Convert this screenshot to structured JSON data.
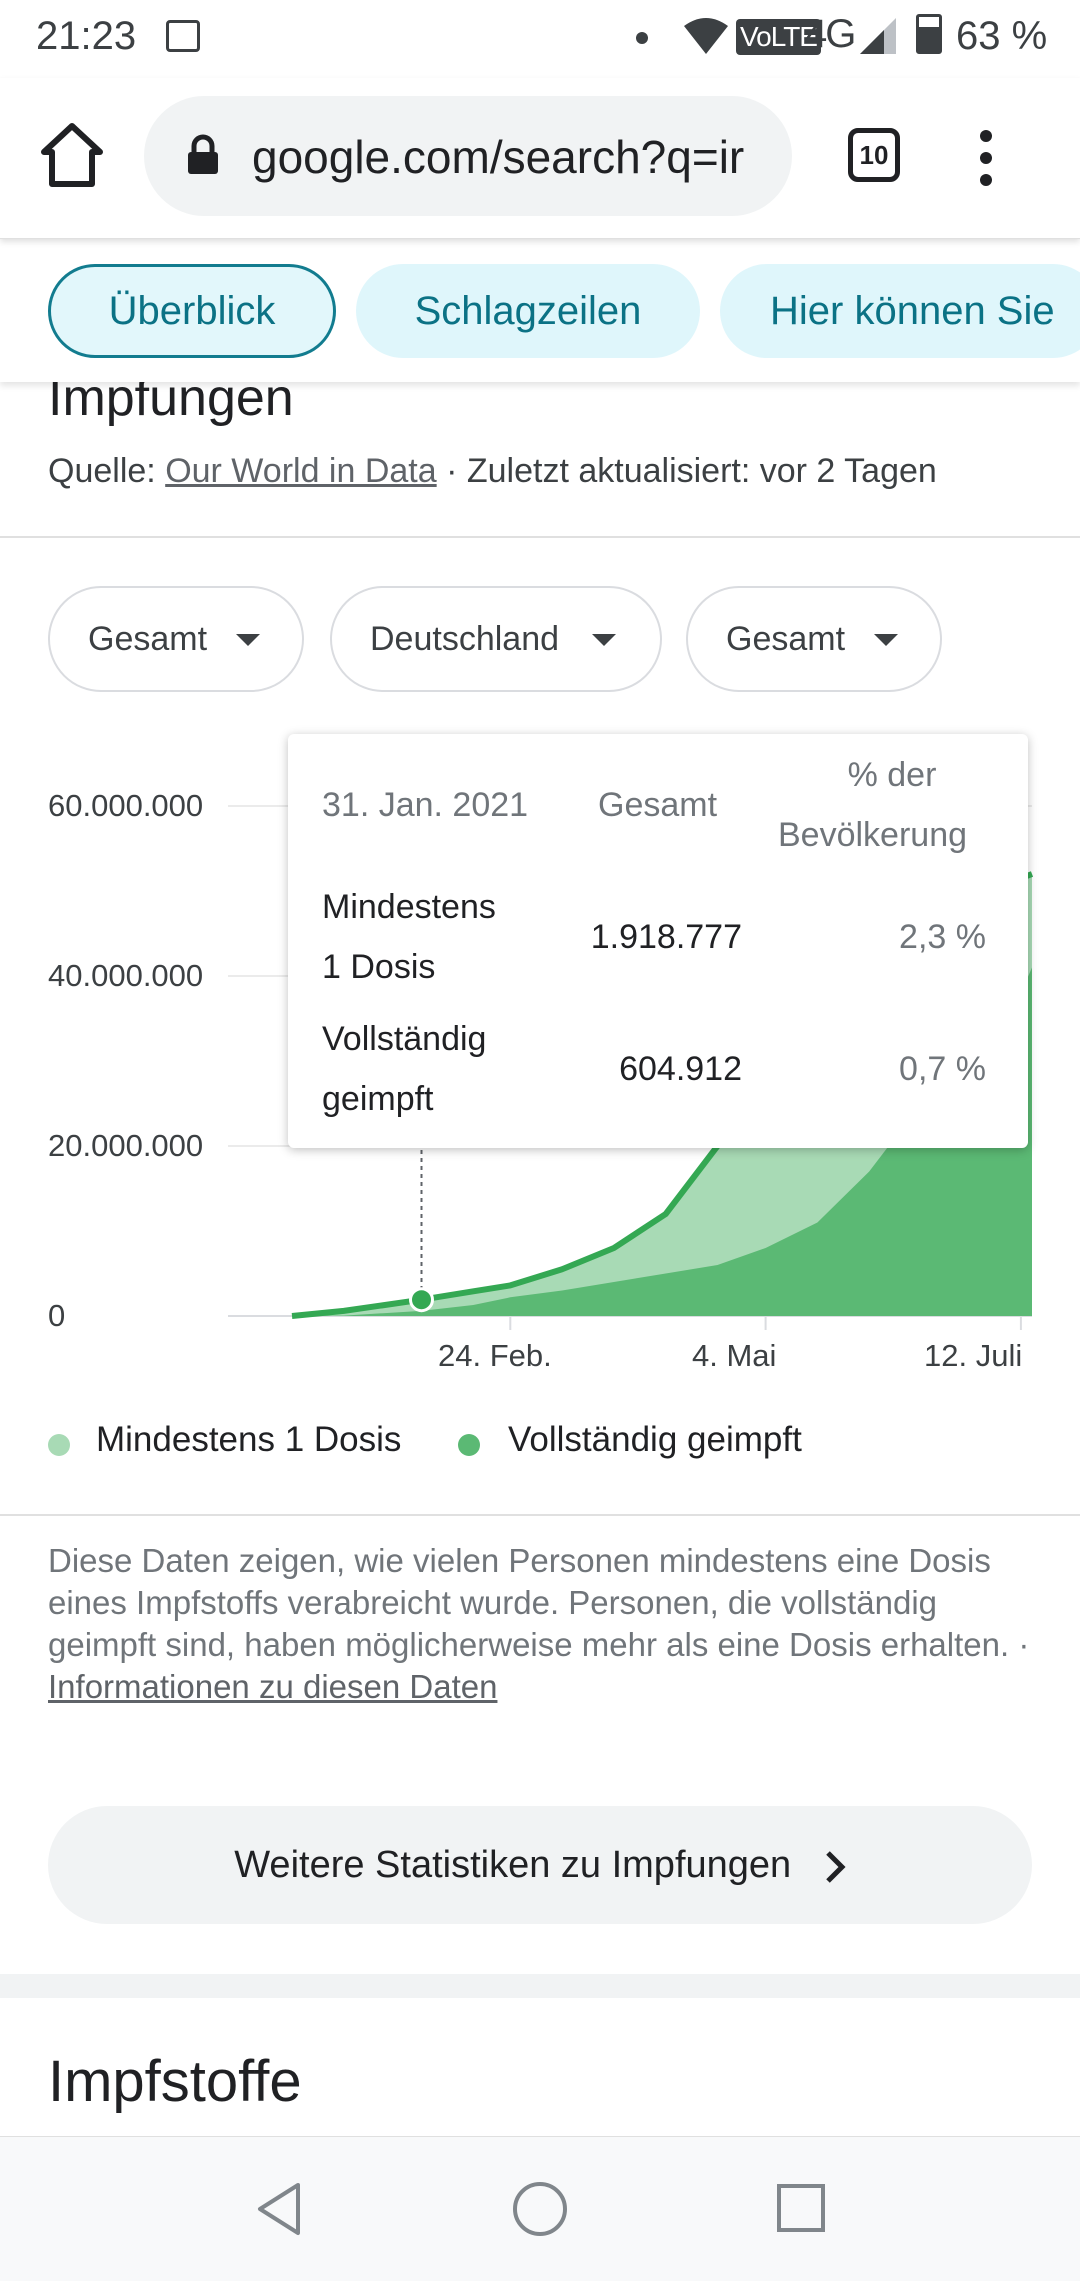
{
  "status_bar": {
    "time": "21:23",
    "network": "4G",
    "volte": "VoLTE",
    "battery": "63 %"
  },
  "browser": {
    "url": "google.com/search?q=ir",
    "tab_count": "10",
    "icons": [
      "home-icon",
      "lock-icon",
      "tabs-icon",
      "more-vert-icon"
    ]
  },
  "chips": [
    {
      "label": "Überblick",
      "active": true
    },
    {
      "label": "Schlagzeilen",
      "active": false
    },
    {
      "label": "Hier können Sie",
      "active": false
    }
  ],
  "section": {
    "title": "Impfungen",
    "source_prefix": "Quelle: ",
    "source_link": "Our World in Data",
    "updated": " · Zuletzt aktualisiert: vor 2 Tagen"
  },
  "filters": [
    {
      "label": "Gesamt"
    },
    {
      "label": "Deutschland"
    },
    {
      "label": "Gesamt"
    }
  ],
  "tooltip": {
    "date": "31. Jan. 2021",
    "col_total": "Gesamt",
    "col_pct_line1": "% der",
    "col_pct_line2": "Bevölkerung",
    "rows": [
      {
        "label_line1": "Mindestens",
        "label_line2": "1 Dosis",
        "total": "1.918.777",
        "pct": "2,3 %"
      },
      {
        "label_line1": "Vollständig",
        "label_line2": "geimpft",
        "total": "604.912",
        "pct": "0,7 %"
      }
    ]
  },
  "legend": {
    "first": "Mindestens 1 Dosis",
    "second": "Vollständig geimpft"
  },
  "description": {
    "text": "Diese Daten zeigen, wie vielen Personen mindestens eine Dosis eines Impfstoffs verabreicht wurde. Personen, die vollständig geimpft sind, haben möglicherweise mehr als eine Dosis erhalten.",
    "separator": " · ",
    "link": "Informationen zu diesen Daten"
  },
  "more_button": "Weitere Statistiken zu Impfungen",
  "next_section_title": "Impfstoffe",
  "colors": {
    "first_dose": "#a8dab5",
    "fully_vaccinated": "#5bb974",
    "line": "#34a853",
    "chip_bg": "#dff6fb",
    "chip_text": "#0b7285"
  },
  "chart_data": {
    "type": "area",
    "x": [
      "2020-12-27",
      "2021-01-10",
      "2021-01-31",
      "2021-02-14",
      "2021-02-24",
      "2021-03-10",
      "2021-03-24",
      "2021-04-07",
      "2021-04-21",
      "2021-05-04",
      "2021-05-18",
      "2021-06-01",
      "2021-06-15",
      "2021-06-29",
      "2021-07-12",
      "2021-07-15"
    ],
    "series": [
      {
        "name": "Mindestens 1 Dosis",
        "values": [
          0,
          600000,
          1918777,
          2900000,
          3600000,
          5500000,
          8000000,
          12000000,
          20000000,
          28000000,
          36000000,
          42000000,
          47000000,
          50000000,
          51500000,
          52000000
        ]
      },
      {
        "name": "Vollständig geimpft",
        "values": [
          0,
          50000,
          604912,
          1300000,
          2200000,
          3000000,
          4000000,
          5000000,
          6000000,
          8000000,
          11000000,
          17000000,
          25000000,
          33000000,
          38000000,
          41000000
        ]
      }
    ],
    "x_tick_labels": [
      "24. Feb.",
      "4. Mai",
      "12. Juli"
    ],
    "y_tick_labels": [
      "0",
      "20.000.000",
      "40.000.000",
      "60.000.000"
    ],
    "ylim": [
      0,
      60000000
    ],
    "highlight": {
      "x": "2021-01-31",
      "value": 1918777
    },
    "legend": "bottom-left",
    "grid": true
  }
}
